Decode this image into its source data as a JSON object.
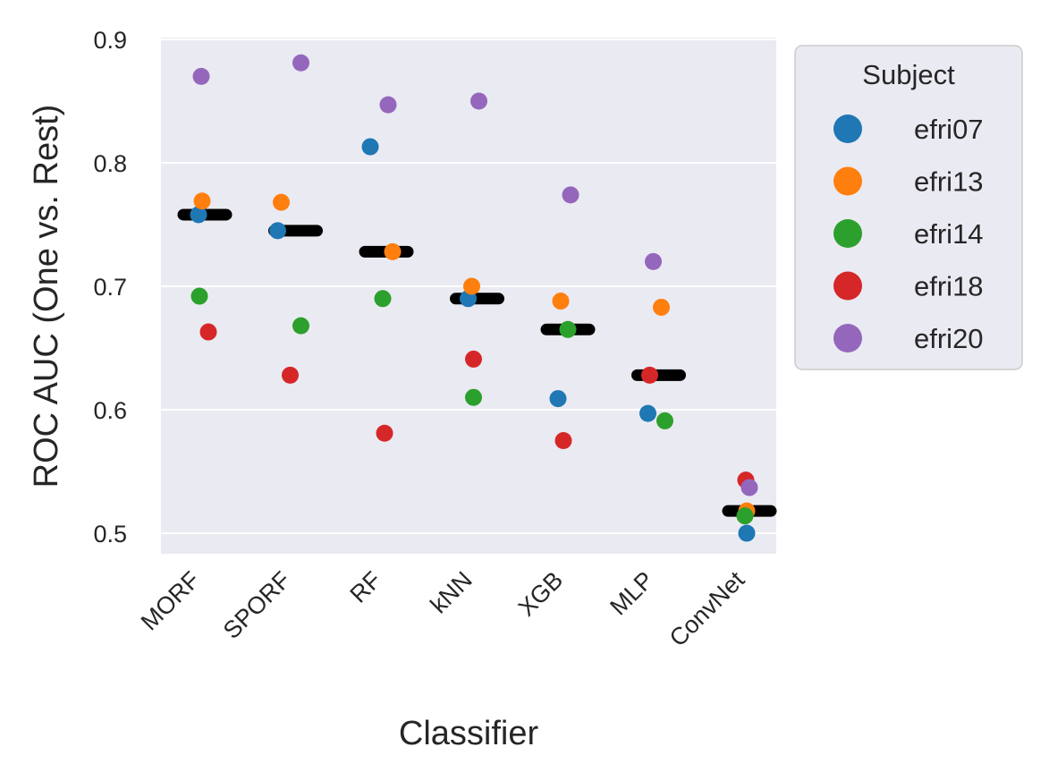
{
  "chart_data": {
    "type": "scatter",
    "title": "",
    "xlabel": "Classifier",
    "ylabel": "ROC AUC (One vs. Rest)",
    "categories": [
      "MORF",
      "SPORF",
      "RF",
      "kNN",
      "XGB",
      "MLP",
      "ConvNet"
    ],
    "ylim": [
      0.483,
      0.9
    ],
    "yticks": [
      "0.5",
      "0.6",
      "0.7",
      "0.8",
      "0.9"
    ],
    "grid": true,
    "legend": {
      "title": "Subject",
      "placement": "outside-right"
    },
    "mean_markers": [
      0.758,
      0.745,
      0.728,
      0.69,
      0.665,
      0.628,
      0.518
    ],
    "series": [
      {
        "name": "efri07",
        "color": "#1f77b4",
        "values": [
          0.758,
          0.745,
          0.813,
          0.69,
          0.609,
          0.597,
          0.5
        ]
      },
      {
        "name": "efri13",
        "color": "#ff7f0e",
        "values": [
          0.769,
          0.768,
          0.728,
          0.7,
          0.688,
          0.683,
          0.518
        ]
      },
      {
        "name": "efri14",
        "color": "#2ca02c",
        "values": [
          0.692,
          0.668,
          0.69,
          0.61,
          0.665,
          0.591,
          0.514
        ]
      },
      {
        "name": "efri18",
        "color": "#d62728",
        "values": [
          0.663,
          0.628,
          0.581,
          0.641,
          0.575,
          0.628,
          0.543
        ]
      },
      {
        "name": "efri20",
        "color": "#9467bd",
        "values": [
          0.87,
          0.881,
          0.847,
          0.85,
          0.774,
          0.72,
          0.537
        ]
      }
    ]
  }
}
